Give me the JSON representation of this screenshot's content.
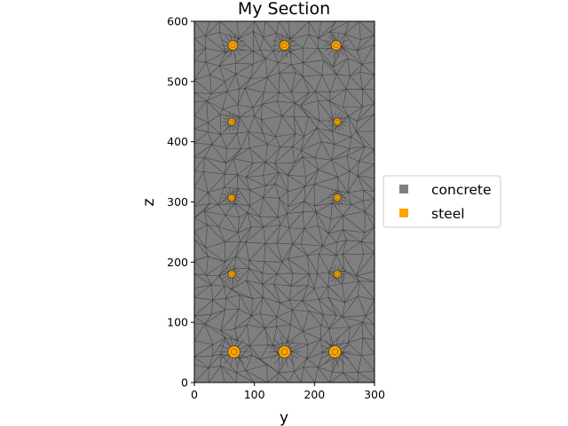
{
  "chart_data": {
    "type": "scatter",
    "title": "My Section",
    "xlabel": "y",
    "ylabel": "z",
    "xlim": [
      0,
      300
    ],
    "ylim": [
      0,
      600
    ],
    "xticks": [
      "0",
      "100",
      "200",
      "300"
    ],
    "yticks": [
      "0",
      "100",
      "200",
      "300",
      "400",
      "500",
      "600"
    ],
    "grid": false,
    "legend_position": "outside-right",
    "series": [
      {
        "name": "concrete",
        "color": "#7f7f7f",
        "shape": "rectangle",
        "extent": {
          "y": [
            0,
            300
          ],
          "z": [
            0,
            600
          ]
        }
      },
      {
        "name": "steel",
        "color": "#ffa500",
        "shape": "circular bars",
        "points": [
          {
            "y": 66,
            "z": 51,
            "d": 20
          },
          {
            "y": 150,
            "z": 51,
            "d": 20
          },
          {
            "y": 234,
            "z": 51,
            "d": 20
          },
          {
            "y": 62,
            "z": 180,
            "d": 12
          },
          {
            "y": 238,
            "z": 180,
            "d": 12
          },
          {
            "y": 62,
            "z": 307,
            "d": 12
          },
          {
            "y": 238,
            "z": 307,
            "d": 12
          },
          {
            "y": 62,
            "z": 433,
            "d": 12
          },
          {
            "y": 238,
            "z": 433,
            "d": 12
          },
          {
            "y": 64,
            "z": 560,
            "d": 16
          },
          {
            "y": 150,
            "z": 560,
            "d": 16
          },
          {
            "y": 236,
            "z": 560,
            "d": 16
          }
        ]
      }
    ]
  }
}
